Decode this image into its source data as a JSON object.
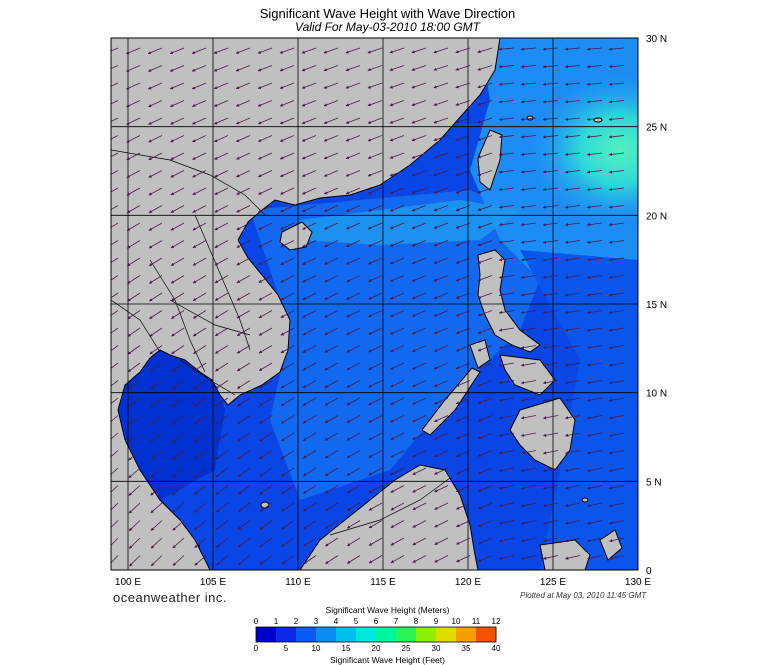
{
  "header": {
    "title": "Significant Wave Height with Wave Direction",
    "subtitle": "Valid For May-03-2010 18:00 GMT"
  },
  "map": {
    "lon_range": [
      99,
      130
    ],
    "lat_range": [
      0,
      30
    ],
    "lon_ticks": [
      100,
      105,
      110,
      115,
      120,
      125,
      130
    ],
    "lat_ticks": [
      0,
      5,
      10,
      15,
      20,
      25,
      30
    ],
    "lon_tick_labels": [
      "100 E",
      "105 E",
      "110 E",
      "115 E",
      "120 E",
      "125 E",
      "130 E"
    ],
    "lat_tick_labels": [
      "0",
      "5 N",
      "10 N",
      "15 N",
      "20 N",
      "25 N",
      "30 N"
    ],
    "grid": true,
    "land_color": "#c0c0c0",
    "arrow_color": "#4a1a4a",
    "wave_direction": "arrows point toward the west and southwest"
  },
  "footer": {
    "brand": "oceanweather inc.",
    "plotted_at": "Plotted at May 03, 2010 11:45 GMT"
  },
  "colorbar": {
    "title_meters": "Significant Wave Height (Meters)",
    "title_feet": "Significant Wave Height (Feet)",
    "meters_ticks": [
      "0",
      "1",
      "2",
      "3",
      "4",
      "5",
      "6",
      "7",
      "8",
      "9",
      "10",
      "11",
      "12"
    ],
    "feet_ticks": [
      "0",
      "5",
      "10",
      "15",
      "20",
      "25",
      "30",
      "35",
      "40"
    ],
    "colors": [
      "#0000c8",
      "#0a28e6",
      "#0a5af5",
      "#0a8cf5",
      "#00bef0",
      "#00e6dc",
      "#00f5a0",
      "#28f55a",
      "#8cf00a",
      "#dcdc00",
      "#f5a000",
      "#f55000",
      "#dc1400"
    ]
  }
}
